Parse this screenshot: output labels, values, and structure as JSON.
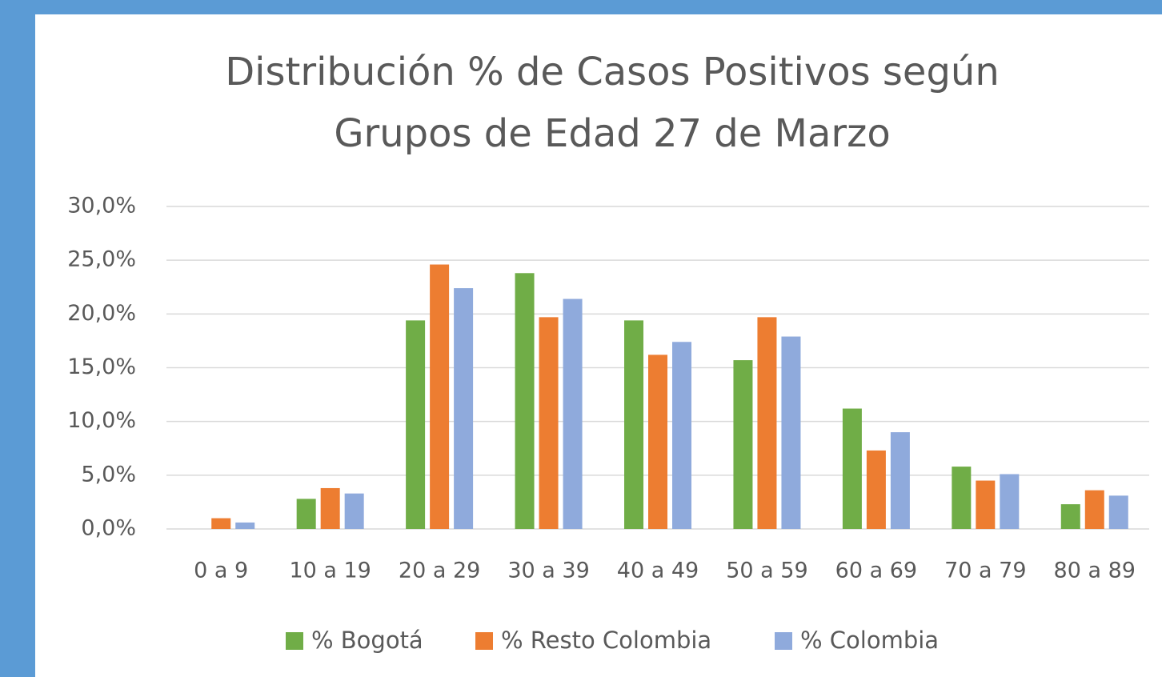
{
  "chart_data": {
    "type": "bar",
    "title": [
      "Distribución % de Casos Positivos según",
      "Grupos de Edad  27 de Marzo"
    ],
    "categories": [
      "0 a 9",
      "10 a 19",
      "20 a 29",
      "30 a 39",
      "40 a 49",
      "50 a 59",
      "60 a 69",
      "70 a 79",
      "80 a 89"
    ],
    "series": [
      {
        "name": "% Bogotá",
        "color": "#70ad47",
        "values": [
          0,
          2.8,
          19.4,
          23.8,
          19.4,
          15.7,
          11.2,
          5.8,
          2.3
        ]
      },
      {
        "name": "% Resto Colombia",
        "color": "#ed7d31",
        "values": [
          1.0,
          3.8,
          24.6,
          19.7,
          16.2,
          19.7,
          7.3,
          4.5,
          3.6
        ]
      },
      {
        "name": "% Colombia",
        "color": "#8faadc",
        "values": [
          0.6,
          3.3,
          22.4,
          21.4,
          17.4,
          17.9,
          9.0,
          5.1,
          3.1
        ]
      }
    ],
    "ylim": [
      0,
      30
    ],
    "yticks": [
      {
        "value": 0,
        "label": "0,0%"
      },
      {
        "value": 5,
        "label": "5,0%"
      },
      {
        "value": 10,
        "label": "10,0%"
      },
      {
        "value": 15,
        "label": "15,0%"
      },
      {
        "value": 20,
        "label": "20,0%"
      },
      {
        "value": 25,
        "label": "25,0%"
      },
      {
        "value": 30,
        "label": "30,0%"
      }
    ],
    "grid": true,
    "legend": "bottom"
  }
}
